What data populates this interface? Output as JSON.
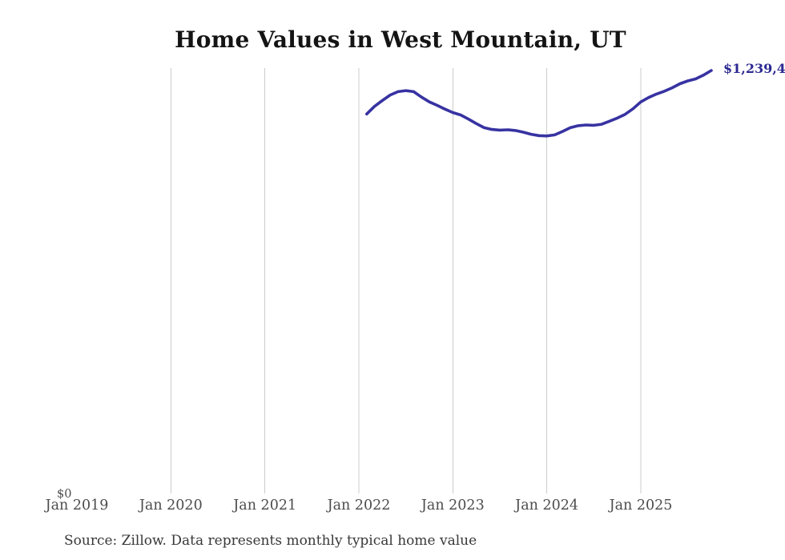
{
  "page": {
    "title": "Home Values in West Mountain, UT",
    "source_note": "Source: Zillow. Data represents monthly typical home value"
  },
  "labels": {
    "y_zero": "$0",
    "latest_value": "$1,239,4"
  },
  "colors": {
    "background": "#ffffff",
    "line": "#3733a2",
    "latest_label": "#2c2a91",
    "gridline": "#cccccc",
    "title_text": "#141414",
    "axis_text": "#4c4c4c",
    "source_text": "#383838"
  },
  "chart_data": {
    "type": "line",
    "title": "Home Values in West Mountain, UT",
    "xlabel": "",
    "ylabel": "",
    "ylim": [
      0,
      1239400
    ],
    "grid": "vertical-gridlines-only",
    "legend": "none",
    "x_ticks": [
      {
        "label": "Jan 2019",
        "year": 2019,
        "gridline": false
      },
      {
        "label": "Jan 2020",
        "year": 2020,
        "gridline": true
      },
      {
        "label": "Jan 2021",
        "year": 2021,
        "gridline": true
      },
      {
        "label": "Jan 2022",
        "year": 2022,
        "gridline": true
      },
      {
        "label": "Jan 2023",
        "year": 2023,
        "gridline": true
      },
      {
        "label": "Jan 2024",
        "year": 2024,
        "gridline": true
      },
      {
        "label": "Jan 2025",
        "year": 2025,
        "gridline": true
      }
    ],
    "series": [
      {
        "name": "Monthly typical home value (USD)",
        "months": [
          "2022-02",
          "2022-03",
          "2022-04",
          "2022-05",
          "2022-06",
          "2022-07",
          "2022-08",
          "2022-09",
          "2022-10",
          "2022-11",
          "2022-12",
          "2023-01",
          "2023-02",
          "2023-03",
          "2023-04",
          "2023-05",
          "2023-06",
          "2023-07",
          "2023-08",
          "2023-09",
          "2023-10",
          "2023-11",
          "2023-12",
          "2024-01",
          "2024-02",
          "2024-03",
          "2024-04",
          "2024-05",
          "2024-06",
          "2024-07",
          "2024-08",
          "2024-09",
          "2024-10",
          "2024-11",
          "2024-12",
          "2025-01",
          "2025-02",
          "2025-03",
          "2025-04",
          "2025-05",
          "2025-06",
          "2025-07",
          "2025-08",
          "2025-09",
          "2025-10"
        ],
        "values": [
          1113000,
          1135000,
          1152000,
          1168000,
          1178000,
          1181000,
          1178000,
          1162000,
          1148000,
          1138000,
          1127000,
          1117000,
          1110000,
          1098000,
          1085000,
          1073000,
          1068000,
          1066000,
          1067000,
          1065000,
          1060000,
          1054000,
          1050000,
          1049000,
          1052000,
          1062000,
          1073000,
          1079000,
          1081000,
          1080000,
          1083000,
          1092000,
          1101000,
          1112000,
          1128000,
          1148000,
          1161000,
          1171000,
          1179000,
          1189000,
          1201000,
          1209000,
          1215000,
          1226000,
          1239400
        ]
      }
    ],
    "latest_point": {
      "month": "2025-10",
      "value": 1239400,
      "visible_label": "$1,239,4"
    }
  }
}
